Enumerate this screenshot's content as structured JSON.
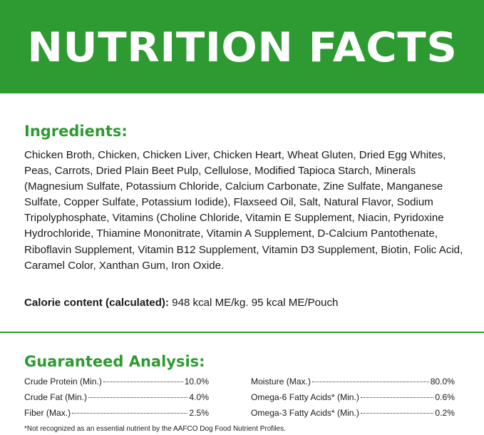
{
  "banner": {
    "title": "NUTRITION FACTS"
  },
  "ingredients": {
    "heading": "Ingredients:",
    "text": "Chicken Broth, Chicken, Chicken Liver, Chicken Heart, Wheat Gluten, Dried Egg Whites, Peas, Carrots, Dried Plain Beet Pulp, Cellulose, Modified Tapioca Starch, Minerals (Magnesium Sulfate, Potassium Chloride, Calcium Carbonate, Zine Sulfate, Manganese Sulfate, Copper Sulfate, Potassium Iodide), Flaxseed Oil, Salt, Natural Flavor, Sodium Tripolyphosphate, Vitamins (Choline Chloride, Vitamin E Supplement, Niacin, Pyridoxine Hydrochloride, Thiamine Mononitrate, Vitamin A Supplement, D-Calcium Pantothenate, Riboflavin Supplement, Vitamin B12 Supplement, Vitamin D3 Supplement, Biotin, Folic Acid, Caramel Color, Xanthan Gum, Iron Oxide."
  },
  "calorie": {
    "label": "Calorie content (calculated):",
    "value": "948 kcal ME/kg. 95 kcal ME/Pouch"
  },
  "guaranteed_analysis": {
    "heading": "Guaranteed Analysis:",
    "left": [
      {
        "name": "Crude Protein (Min.)",
        "value": "10.0%"
      },
      {
        "name": "Crude Fat (Min.)",
        "value": "4.0%"
      },
      {
        "name": "Fiber (Max.)",
        "value": "2.5%"
      }
    ],
    "right": [
      {
        "name": "Moisture (Max.)",
        "value": "80.0%"
      },
      {
        "name": "Omega-6 Fatty Acids* (Min.)",
        "value": "0.6%"
      },
      {
        "name": "Omega-3 Fatty Acids* (Min.)",
        "value": "0.2%"
      }
    ]
  },
  "footnote": "*Not recognized as an essential nutrient by the AAFCO Dog Food Nutrient Profiles.",
  "colors": {
    "brand_green": "#2e9a32",
    "text": "#1a1a1a",
    "background": "#ffffff"
  }
}
